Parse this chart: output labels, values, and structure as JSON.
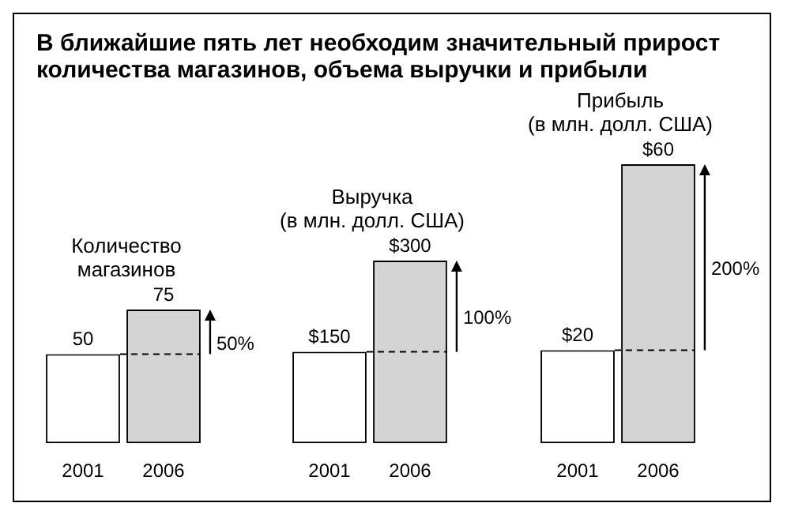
{
  "chart_data": [
    {
      "type": "other",
      "title": "В ближайшие пять лет необходим значительный прирост количества магазинов, объема выручки и прибыли"
    },
    {
      "type": "bar",
      "title": "Количество\nмагазинов",
      "categories": [
        "2001",
        "2006"
      ],
      "values": [
        50,
        75
      ],
      "colors": [
        "#ffffff",
        "#d4d4d4"
      ],
      "data_labels": true,
      "ref_lines": [
        {
          "axis": "y",
          "value": 50,
          "line_style": "dashed"
        }
      ],
      "annotations": [
        "50%"
      ]
    },
    {
      "type": "bar",
      "title": "Выручка\n(в млн. долл. США)",
      "categories": [
        "2001",
        "2006"
      ],
      "values": [
        150,
        300
      ],
      "colors": [
        "#ffffff",
        "#d4d4d4"
      ],
      "value_labels": [
        "$150",
        "$300"
      ],
      "ref_lines": [
        {
          "axis": "y",
          "value": 150,
          "line_style": "dashed"
        }
      ],
      "annotations": [
        "100%"
      ]
    },
    {
      "type": "bar",
      "title": "Прибыль\n(в млн. долл. США)",
      "categories": [
        "2001",
        "2006"
      ],
      "values": [
        20,
        60
      ],
      "colors": [
        "#ffffff",
        "#d4d4d4"
      ],
      "value_labels": [
        "$20",
        "$60"
      ],
      "ref_lines": [
        {
          "axis": "y",
          "value": 20,
          "line_style": "dashed"
        }
      ],
      "annotations": [
        "200%"
      ]
    }
  ]
}
